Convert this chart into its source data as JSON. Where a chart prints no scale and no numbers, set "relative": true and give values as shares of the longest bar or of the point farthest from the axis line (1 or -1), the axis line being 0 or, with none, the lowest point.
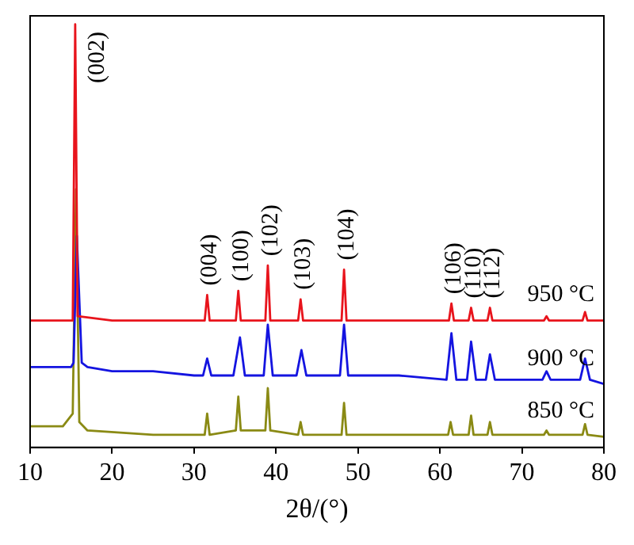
{
  "chart_data": {
    "type": "line",
    "xlabel": "2θ/(°)",
    "relative": true,
    "marker": "none",
    "xlim": [
      10,
      80
    ],
    "xticks": [
      10,
      20,
      30,
      40,
      50,
      60,
      70,
      80
    ],
    "series": [
      {
        "name": "950 °C",
        "color": "#e8141c",
        "x": [
          10,
          15.2,
          15.5,
          15.8,
          20,
          30,
          31.3,
          31.6,
          31.9,
          35.1,
          35.4,
          35.7,
          38.7,
          39.0,
          39.3,
          42.7,
          43.0,
          43.3,
          48.0,
          48.3,
          48.6,
          55,
          61.1,
          61.4,
          61.7,
          63.5,
          63.8,
          64.1,
          65.8,
          66.1,
          66.4,
          72.7,
          73.0,
          73.3,
          77.4,
          77.7,
          78.0,
          80
        ],
        "values": [
          0.3,
          0.3,
          1.0,
          0.31,
          0.3,
          0.3,
          0.3,
          0.36,
          0.3,
          0.3,
          0.37,
          0.3,
          0.3,
          0.43,
          0.3,
          0.3,
          0.35,
          0.3,
          0.3,
          0.42,
          0.3,
          0.3,
          0.3,
          0.34,
          0.3,
          0.3,
          0.33,
          0.3,
          0.3,
          0.33,
          0.3,
          0.3,
          0.31,
          0.3,
          0.3,
          0.32,
          0.3,
          0.3
        ]
      },
      {
        "name": "900 °C",
        "color": "#1414e0",
        "x": [
          10,
          15,
          15.3,
          15.7,
          16.3,
          17,
          20,
          25,
          30,
          31.1,
          31.6,
          32.1,
          34.8,
          35.6,
          36.2,
          38.5,
          39.0,
          39.6,
          42.5,
          43.1,
          43.7,
          47.8,
          48.3,
          48.8,
          55,
          60.8,
          61.4,
          62,
          63.3,
          63.8,
          64.4,
          65.6,
          66.1,
          66.7,
          72.5,
          73.0,
          73.5,
          77.1,
          77.7,
          78.3,
          80
        ],
        "values": [
          0.19,
          0.19,
          0.2,
          0.5,
          0.2,
          0.19,
          0.18,
          0.18,
          0.17,
          0.17,
          0.21,
          0.17,
          0.17,
          0.26,
          0.17,
          0.17,
          0.29,
          0.17,
          0.17,
          0.23,
          0.17,
          0.17,
          0.29,
          0.17,
          0.17,
          0.16,
          0.27,
          0.16,
          0.16,
          0.25,
          0.16,
          0.16,
          0.22,
          0.16,
          0.16,
          0.18,
          0.16,
          0.16,
          0.21,
          0.16,
          0.15
        ]
      },
      {
        "name": "850 °C",
        "color": "#8a8a14",
        "x": [
          10,
          14,
          15.2,
          15.6,
          16.0,
          17,
          25,
          31.3,
          31.6,
          31.9,
          35.1,
          35.4,
          35.7,
          38.7,
          39.0,
          39.3,
          42.7,
          43.0,
          43.3,
          48.0,
          48.3,
          48.6,
          55,
          61.0,
          61.3,
          61.6,
          63.5,
          63.8,
          64.1,
          65.8,
          66.1,
          66.4,
          72.7,
          73.0,
          73.3,
          77.4,
          77.7,
          78.0,
          80
        ],
        "values": [
          0.05,
          0.05,
          0.08,
          0.61,
          0.06,
          0.04,
          0.03,
          0.03,
          0.08,
          0.03,
          0.04,
          0.12,
          0.04,
          0.04,
          0.14,
          0.04,
          0.03,
          0.06,
          0.03,
          0.03,
          0.105,
          0.03,
          0.03,
          0.03,
          0.06,
          0.03,
          0.03,
          0.075,
          0.03,
          0.03,
          0.06,
          0.03,
          0.03,
          0.04,
          0.03,
          0.03,
          0.055,
          0.03,
          0.025
        ]
      }
    ],
    "annotations": [
      {
        "text": "(002)",
        "x": 15.5,
        "y": 1.0
      },
      {
        "text": "(004)",
        "x": 31.6,
        "y": 0.36
      },
      {
        "text": "(100)",
        "x": 35.4,
        "y": 0.37
      },
      {
        "text": "(102)",
        "x": 39.0,
        "y": 0.43
      },
      {
        "text": "(103)",
        "x": 43.0,
        "y": 0.35
      },
      {
        "text": "(104)",
        "x": 48.3,
        "y": 0.42
      },
      {
        "text": "(106)",
        "x": 61.4,
        "y": 0.34
      },
      {
        "text": "(110)",
        "x": 63.8,
        "y": 0.33
      },
      {
        "text": "(112)",
        "x": 66.1,
        "y": 0.33
      }
    ]
  }
}
